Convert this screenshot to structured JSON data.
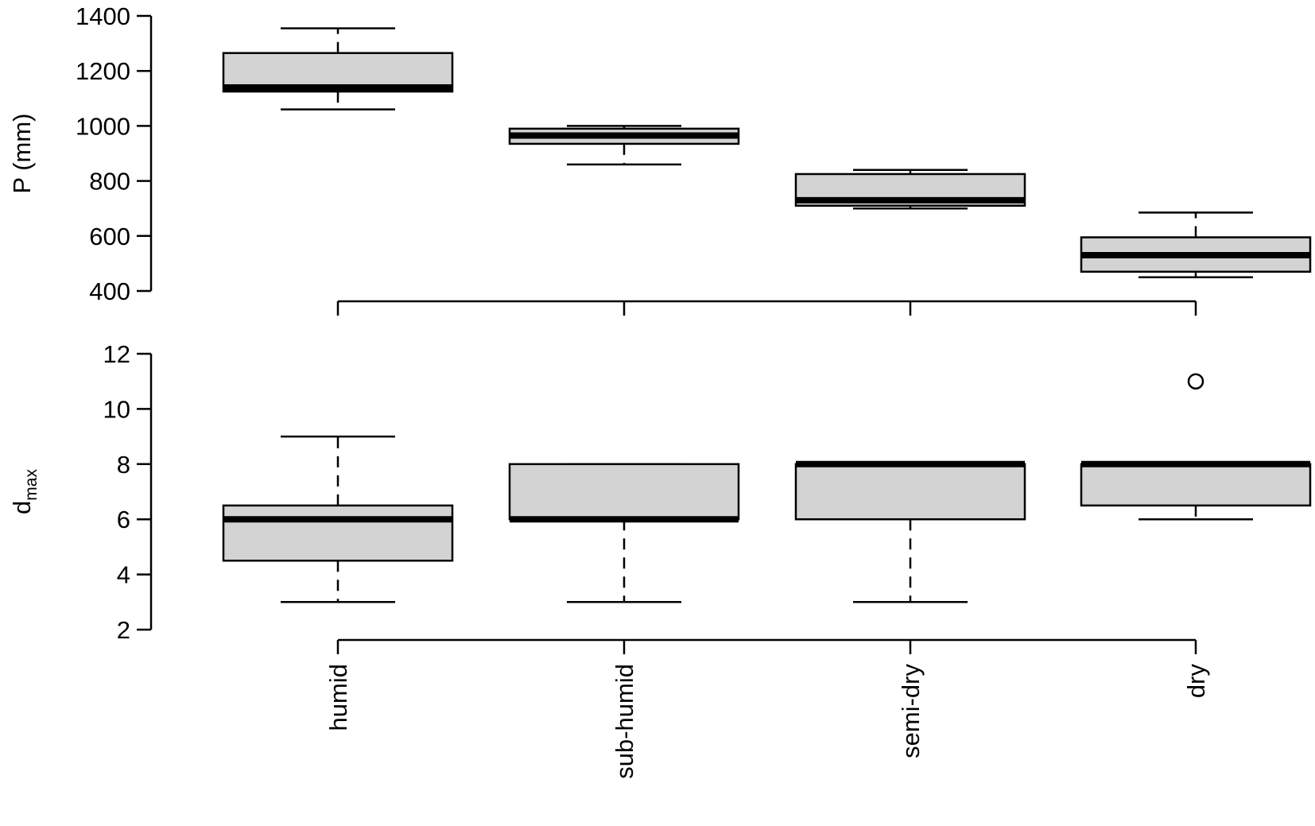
{
  "chart_data": [
    {
      "type": "boxplot",
      "ylabel": "P (mm)",
      "ylim": [
        400,
        1400
      ],
      "yticks": [
        "400",
        "600",
        "800",
        "1000",
        "1200",
        "1400"
      ],
      "grid": false,
      "categories": [
        "humid",
        "sub-humid",
        "semi-dry",
        "dry"
      ],
      "boxes": [
        {
          "min": 1060,
          "q1": 1125,
          "median": 1140,
          "q3": 1265,
          "max": 1355,
          "outliers": []
        },
        {
          "min": 860,
          "q1": 935,
          "median": 965,
          "q3": 990,
          "max": 1000,
          "outliers": []
        },
        {
          "min": 700,
          "q1": 710,
          "median": 730,
          "q3": 825,
          "max": 840,
          "outliers": []
        },
        {
          "min": 450,
          "q1": 470,
          "median": 530,
          "q3": 595,
          "max": 685,
          "outliers": []
        }
      ]
    },
    {
      "type": "boxplot",
      "ylabel": {
        "main": "d",
        "sub": "max"
      },
      "ylim": [
        2,
        12
      ],
      "yticks": [
        "2",
        "4",
        "6",
        "8",
        "10",
        "12"
      ],
      "grid": false,
      "categories": [
        "humid",
        "sub-humid",
        "semi-dry",
        "dry"
      ],
      "boxes": [
        {
          "min": 3,
          "q1": 4.5,
          "median": 6,
          "q3": 6.5,
          "max": 9,
          "outliers": []
        },
        {
          "min": 3,
          "q1": 6,
          "median": 6,
          "q3": 8,
          "max": 8,
          "outliers": []
        },
        {
          "min": 3,
          "q1": 6,
          "median": 8,
          "q3": 8,
          "max": 8,
          "outliers": []
        },
        {
          "min": 6,
          "q1": 6.5,
          "median": 8,
          "q3": 8,
          "max": 8,
          "outliers": [
            11
          ]
        }
      ]
    }
  ],
  "colors": {
    "box_fill": "#d3d3d3",
    "stroke": "#000000"
  }
}
